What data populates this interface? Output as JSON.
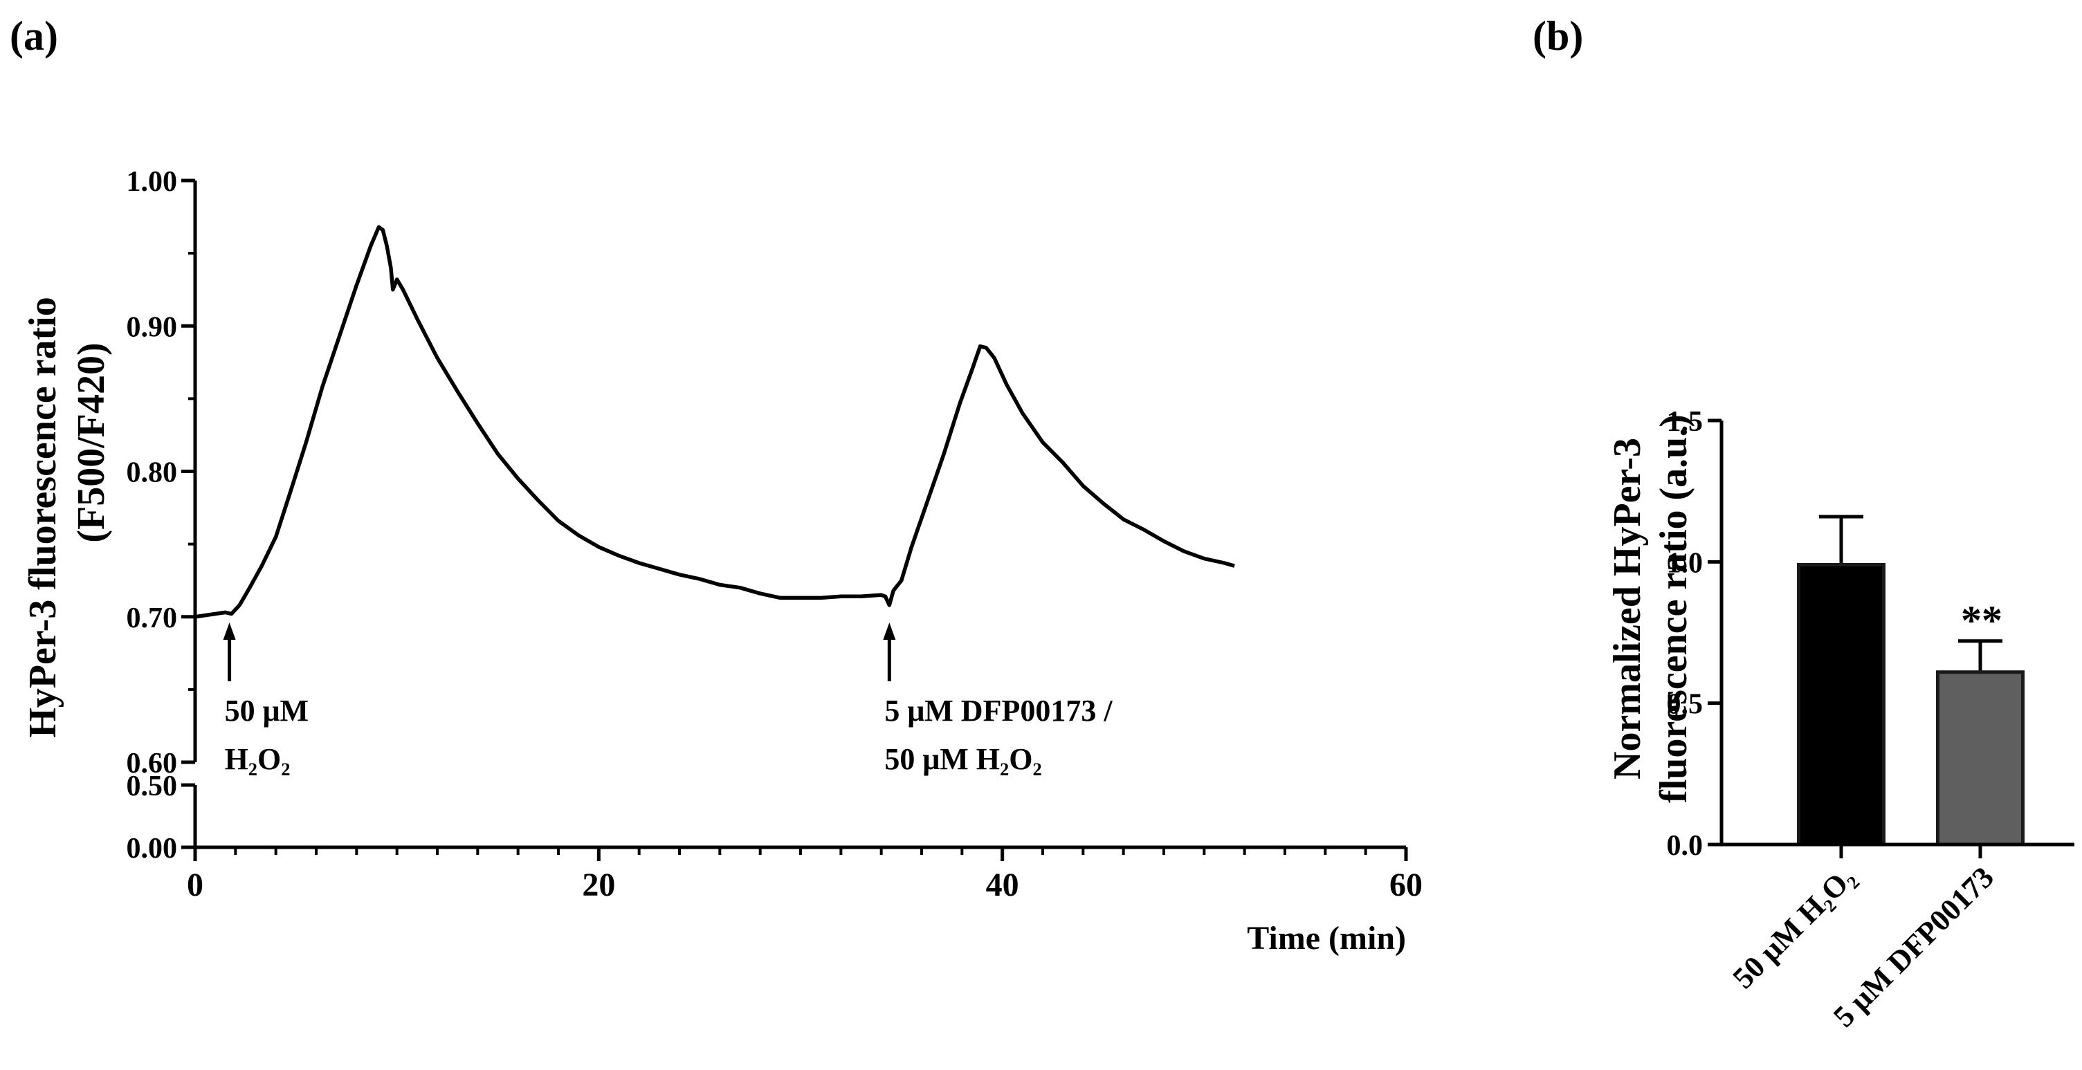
{
  "panel_labels": {
    "a": "(a)",
    "b": "(b)"
  },
  "colors": {
    "line": "#000000",
    "bar1": "#000000",
    "bar2": "#5f5f5f",
    "axis": "#000000"
  },
  "chart_data": [
    {
      "panel": "(a)",
      "type": "line",
      "title": "",
      "xlabel": "Time (min)",
      "ylabel_lines": [
        "HyPer-3 fluorescence ratio",
        "(F500/F420)"
      ],
      "xlim": [
        0,
        60
      ],
      "ylim_upper": [
        0.6,
        1.0
      ],
      "ylim_lower": [
        0.0,
        0.5
      ],
      "axis_break": true,
      "x_ticks": [
        {
          "value": 0,
          "label": "0"
        },
        {
          "value": 20,
          "label": "20"
        },
        {
          "value": 40,
          "label": "40"
        },
        {
          "value": 60,
          "label": "60"
        }
      ],
      "y_ticks_upper": [
        {
          "value": 0.6,
          "label": "0.60"
        },
        {
          "value": 0.7,
          "label": "0.70"
        },
        {
          "value": 0.8,
          "label": "0.80"
        },
        {
          "value": 0.9,
          "label": "0.90"
        },
        {
          "value": 1.0,
          "label": "1.00"
        }
      ],
      "y_ticks_lower": [
        {
          "value": 0.0,
          "label": "0.00"
        },
        {
          "value": 0.5,
          "label": "0.50"
        }
      ],
      "series": [
        {
          "name": "HyPer-3 ratio",
          "points": [
            [
              0,
              0.7
            ],
            [
              0.5,
              0.701
            ],
            [
              1.0,
              0.702
            ],
            [
              1.5,
              0.703
            ],
            [
              1.8,
              0.702
            ],
            [
              2.2,
              0.708
            ],
            [
              2.7,
              0.72
            ],
            [
              3.3,
              0.735
            ],
            [
              4.0,
              0.755
            ],
            [
              4.7,
              0.785
            ],
            [
              5.5,
              0.82
            ],
            [
              6.3,
              0.858
            ],
            [
              7.2,
              0.895
            ],
            [
              8.0,
              0.928
            ],
            [
              8.7,
              0.955
            ],
            [
              9.1,
              0.968
            ],
            [
              9.3,
              0.966
            ],
            [
              9.5,
              0.955
            ],
            [
              9.7,
              0.94
            ],
            [
              9.8,
              0.925
            ],
            [
              10.0,
              0.932
            ],
            [
              10.3,
              0.925
            ],
            [
              11.0,
              0.905
            ],
            [
              12.0,
              0.878
            ],
            [
              13.0,
              0.855
            ],
            [
              14.0,
              0.833
            ],
            [
              15.0,
              0.812
            ],
            [
              16.0,
              0.795
            ],
            [
              17.0,
              0.78
            ],
            [
              18.0,
              0.766
            ],
            [
              19.0,
              0.756
            ],
            [
              20.0,
              0.748
            ],
            [
              21.0,
              0.742
            ],
            [
              22.0,
              0.737
            ],
            [
              23.0,
              0.733
            ],
            [
              24.0,
              0.729
            ],
            [
              25.0,
              0.726
            ],
            [
              26.0,
              0.722
            ],
            [
              27.0,
              0.72
            ],
            [
              28.0,
              0.716
            ],
            [
              29.0,
              0.713
            ],
            [
              30.0,
              0.713
            ],
            [
              31.0,
              0.713
            ],
            [
              32.0,
              0.714
            ],
            [
              33.0,
              0.714
            ],
            [
              34.0,
              0.715
            ],
            [
              34.2,
              0.714
            ],
            [
              34.4,
              0.708
            ],
            [
              34.6,
              0.718
            ],
            [
              35.0,
              0.725
            ],
            [
              35.5,
              0.748
            ],
            [
              36.3,
              0.78
            ],
            [
              37.1,
              0.812
            ],
            [
              37.9,
              0.847
            ],
            [
              38.5,
              0.87
            ],
            [
              38.9,
              0.886
            ],
            [
              39.2,
              0.885
            ],
            [
              39.6,
              0.878
            ],
            [
              40.2,
              0.86
            ],
            [
              41.0,
              0.84
            ],
            [
              42.0,
              0.82
            ],
            [
              43.0,
              0.806
            ],
            [
              44.0,
              0.79
            ],
            [
              45.0,
              0.778
            ],
            [
              46.0,
              0.767
            ],
            [
              47.0,
              0.76
            ],
            [
              48.0,
              0.752
            ],
            [
              49.0,
              0.745
            ],
            [
              50.0,
              0.74
            ],
            [
              51.0,
              0.737
            ],
            [
              51.5,
              0.735
            ]
          ]
        }
      ],
      "annotations": [
        {
          "x": 1.7,
          "lines": [
            "50 μM",
            "H₂O₂"
          ]
        },
        {
          "x": 34.4,
          "lines": [
            "5 μM DFP00173 /",
            "50 μM H₂O₂"
          ]
        }
      ]
    },
    {
      "panel": "(b)",
      "type": "bar",
      "title": "",
      "ylabel_lines": [
        "Normalized HyPer-3",
        "fluorescence ratio (a.u.)"
      ],
      "ylim": [
        0,
        1.5
      ],
      "y_ticks": [
        {
          "value": 0.0,
          "label": "0.0"
        },
        {
          "value": 0.5,
          "label": "0.5"
        },
        {
          "value": 1.0,
          "label": "1.0"
        },
        {
          "value": 1.5,
          "label": "1.5"
        }
      ],
      "categories": [
        "50 μM H₂O₂",
        "5 μM DFP00173"
      ],
      "values": [
        0.99,
        0.61
      ],
      "errors": [
        0.17,
        0.11
      ],
      "significance": [
        "",
        "**"
      ]
    }
  ]
}
